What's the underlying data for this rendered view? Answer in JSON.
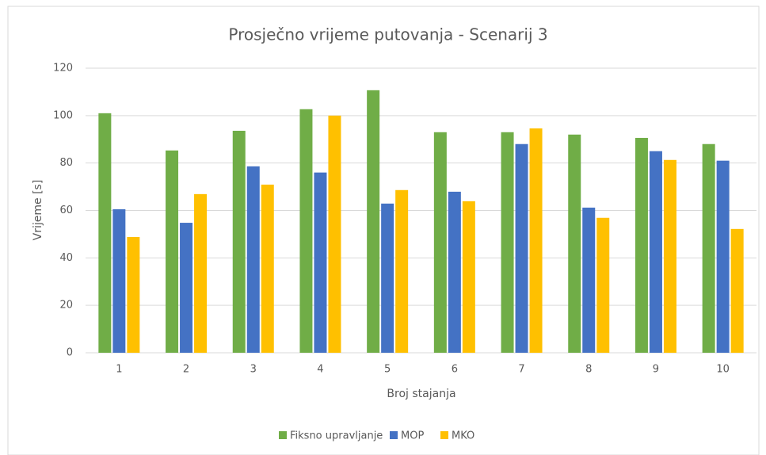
{
  "chart_data": {
    "type": "bar",
    "title": "Prosječno vrijeme putovanja - Scenarij 3",
    "x_label": "Broj stajanja",
    "y_label": "Vrijeme [s]",
    "categories": [
      "1",
      "2",
      "3",
      "4",
      "5",
      "6",
      "7",
      "8",
      "9",
      "10"
    ],
    "series": [
      {
        "name": "Fiksno upravljanje",
        "color": "#70ad47",
        "values": [
          101,
          85.3,
          93.6,
          102.7,
          110.7,
          93,
          93,
          92,
          90.6,
          88
        ]
      },
      {
        "name": "MOP",
        "color": "#4472c4",
        "values": [
          60.5,
          54.8,
          78.6,
          76,
          62.9,
          67.9,
          88,
          61.2,
          85,
          81
        ]
      },
      {
        "name": "MKO",
        "color": "#ffc000",
        "values": [
          48.8,
          66.9,
          70.9,
          100,
          68.6,
          63.9,
          94.6,
          56.9,
          81.3,
          52.2
        ]
      }
    ],
    "ylim": [
      0,
      120
    ],
    "yticks": [
      0,
      20,
      40,
      60,
      80,
      100,
      120
    ],
    "grid": true,
    "legend": "bottom"
  }
}
